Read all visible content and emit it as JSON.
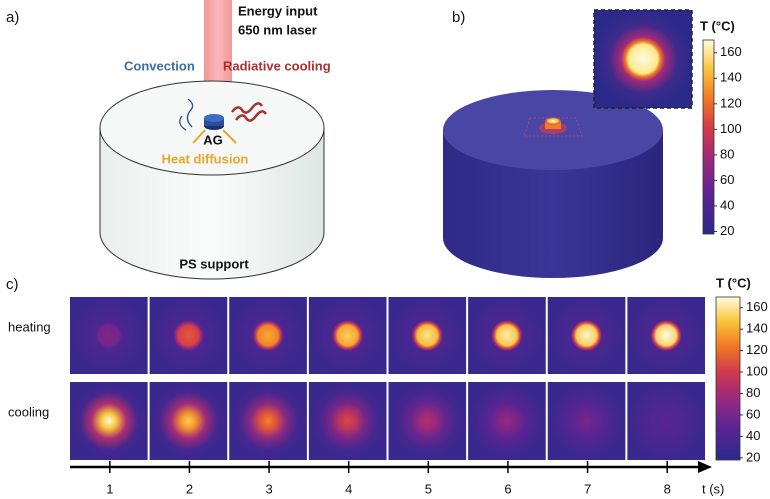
{
  "panel_a": {
    "label": "a)",
    "laser_line1": "Energy input",
    "laser_line2": "650 nm laser",
    "convection": "Convection",
    "radiative": "Radiative cooling",
    "sample": "AG",
    "diffusion": "Heat diffusion",
    "support": "PS support"
  },
  "panel_b": {
    "label": "b)",
    "colorbar": {
      "title": "T (°C)",
      "lim": [
        18,
        170
      ],
      "ticks": [
        20,
        40,
        60,
        80,
        100,
        120,
        140,
        160
      ]
    }
  },
  "panel_c": {
    "label": "c)",
    "row_labels": [
      "heating",
      "cooling"
    ],
    "time_axis": {
      "label": "t (s)",
      "ticks": [
        1,
        2,
        3,
        4,
        5,
        6,
        7,
        8
      ]
    },
    "colorbar": {
      "title": "T (°C)",
      "lim": [
        18,
        170
      ],
      "ticks": [
        20,
        40,
        60,
        80,
        100,
        120,
        140,
        160
      ]
    }
  }
}
